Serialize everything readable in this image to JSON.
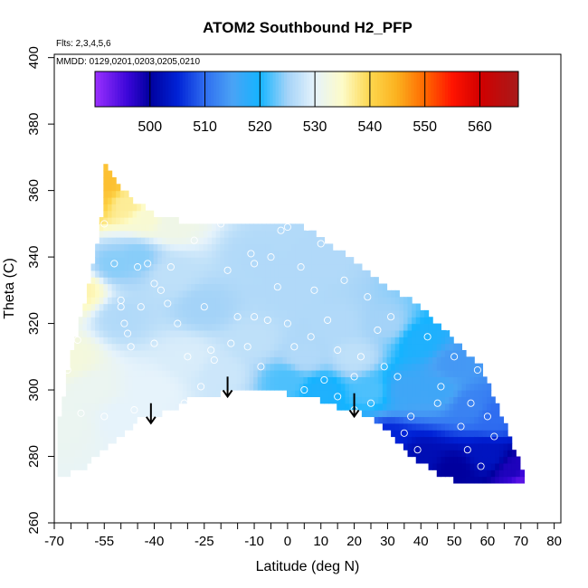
{
  "chart_data": {
    "type": "heatmap",
    "title": "ATOM2 Southbound H2_PFP",
    "flights_label": "Flts: 2,3,4,5,6",
    "dates_label": "MMDD: 0129,0201,0203,0205,0210",
    "xlabel": "Latitude (deg N)",
    "ylabel": "Theta (C)",
    "xlim": [
      -70,
      82
    ],
    "ylim": [
      260,
      401
    ],
    "x_ticks": [
      -70,
      -55,
      -40,
      -25,
      -10,
      0,
      10,
      20,
      30,
      40,
      50,
      60,
      70,
      80
    ],
    "x_tick_labels": [
      "-70",
      "-55",
      "-40",
      "-25",
      "-10",
      "0",
      "10",
      "20",
      "30",
      "40",
      "50",
      "60",
      "70",
      "80"
    ],
    "x_minor_ticks": [
      -65,
      -60,
      -50,
      -45,
      -35,
      -30,
      -20,
      -15,
      -5,
      5,
      15,
      25,
      35,
      45,
      55,
      65,
      75
    ],
    "y_ticks": [
      260,
      280,
      300,
      320,
      340,
      360,
      380,
      400
    ],
    "y_tick_labels": [
      "260",
      "280",
      "300",
      "320",
      "340",
      "360",
      "380",
      "400"
    ],
    "colorbar": {
      "range": [
        490,
        567
      ],
      "ticks": [
        500,
        510,
        520,
        530,
        540,
        550,
        560
      ],
      "tick_labels": [
        "500",
        "510",
        "520",
        "530",
        "540",
        "550",
        "560"
      ],
      "stops": [
        {
          "v": 490,
          "c": "#9b30ff"
        },
        {
          "v": 496,
          "c": "#3a06d8"
        },
        {
          "v": 500,
          "c": "#00009e"
        },
        {
          "v": 505,
          "c": "#0022d6"
        },
        {
          "v": 510,
          "c": "#2f6df0"
        },
        {
          "v": 515,
          "c": "#4aa3f5"
        },
        {
          "v": 520,
          "c": "#14b4ff"
        },
        {
          "v": 525,
          "c": "#a4d3f8"
        },
        {
          "v": 530,
          "c": "#e6f3fb"
        },
        {
          "v": 535,
          "c": "#fdfbc8"
        },
        {
          "v": 540,
          "c": "#fdd74e"
        },
        {
          "v": 545,
          "c": "#fbb01e"
        },
        {
          "v": 550,
          "c": "#ff6800"
        },
        {
          "v": 555,
          "c": "#ff1400"
        },
        {
          "v": 560,
          "c": "#d20000"
        },
        {
          "v": 567,
          "c": "#a71a1a"
        }
      ]
    },
    "field_boundary": {
      "top": [
        [
          -69,
          289
        ],
        [
          -65,
          310
        ],
        [
          -60,
          330
        ],
        [
          -56,
          350
        ],
        [
          -55,
          368
        ],
        [
          -50,
          361
        ],
        [
          -45,
          356
        ],
        [
          -40,
          353
        ],
        [
          -35,
          352
        ],
        [
          -30,
          350
        ],
        [
          -25,
          351
        ],
        [
          -20,
          350
        ],
        [
          -15,
          350
        ],
        [
          -10,
          350
        ],
        [
          -5,
          350
        ],
        [
          0,
          350
        ],
        [
          5,
          349
        ],
        [
          10,
          346
        ],
        [
          15,
          342
        ],
        [
          20,
          339
        ],
        [
          25,
          335
        ],
        [
          30,
          331
        ],
        [
          35,
          328
        ],
        [
          40,
          325
        ],
        [
          45,
          320
        ],
        [
          50,
          315
        ],
        [
          55,
          310
        ],
        [
          58,
          307
        ],
        [
          61,
          300
        ],
        [
          65,
          290
        ],
        [
          68,
          282
        ],
        [
          71,
          275
        ]
      ],
      "bottom": [
        [
          -69,
          274
        ],
        [
          -62,
          276
        ],
        [
          -55,
          282
        ],
        [
          -50,
          286
        ],
        [
          -45,
          291
        ],
        [
          -40,
          292
        ],
        [
          -35,
          294
        ],
        [
          -30,
          297
        ],
        [
          -25,
          298
        ],
        [
          -20,
          299
        ],
        [
          -15,
          300
        ],
        [
          -10,
          301
        ],
        [
          -5,
          300
        ],
        [
          0,
          299
        ],
        [
          5,
          298
        ],
        [
          10,
          297
        ],
        [
          15,
          295
        ],
        [
          20,
          294
        ],
        [
          25,
          292
        ],
        [
          30,
          288
        ],
        [
          35,
          282
        ],
        [
          40,
          278
        ],
        [
          45,
          275
        ],
        [
          50,
          273
        ],
        [
          55,
          272
        ],
        [
          60,
          272
        ],
        [
          65,
          272
        ],
        [
          71,
          272
        ]
      ]
    },
    "value_field_anchors": [
      {
        "lat": -58,
        "theta": 358,
        "v": 542
      },
      {
        "lat": -55,
        "theta": 362,
        "v": 543
      },
      {
        "lat": -48,
        "theta": 356,
        "v": 537
      },
      {
        "lat": -42,
        "theta": 352,
        "v": 534
      },
      {
        "lat": -35,
        "theta": 350,
        "v": 532
      },
      {
        "lat": -62,
        "theta": 330,
        "v": 536
      },
      {
        "lat": -65,
        "theta": 310,
        "v": 533
      },
      {
        "lat": -66,
        "theta": 290,
        "v": 531
      },
      {
        "lat": -58,
        "theta": 300,
        "v": 531
      },
      {
        "lat": -50,
        "theta": 292,
        "v": 530
      },
      {
        "lat": -50,
        "theta": 322,
        "v": 526
      },
      {
        "lat": -52,
        "theta": 338,
        "v": 524
      },
      {
        "lat": -45,
        "theta": 340,
        "v": 524
      },
      {
        "lat": -35,
        "theta": 335,
        "v": 527
      },
      {
        "lat": -25,
        "theta": 325,
        "v": 525
      },
      {
        "lat": -30,
        "theta": 310,
        "v": 529
      },
      {
        "lat": -40,
        "theta": 300,
        "v": 530
      },
      {
        "lat": -20,
        "theta": 305,
        "v": 528
      },
      {
        "lat": -10,
        "theta": 340,
        "v": 526
      },
      {
        "lat": -10,
        "theta": 315,
        "v": 527
      },
      {
        "lat": 0,
        "theta": 330,
        "v": 526
      },
      {
        "lat": 5,
        "theta": 310,
        "v": 526
      },
      {
        "lat": 10,
        "theta": 340,
        "v": 526
      },
      {
        "lat": 15,
        "theta": 320,
        "v": 526
      },
      {
        "lat": 20,
        "theta": 310,
        "v": 527
      },
      {
        "lat": 25,
        "theta": 300,
        "v": 522
      },
      {
        "lat": 30,
        "theta": 320,
        "v": 525
      },
      {
        "lat": 35,
        "theta": 300,
        "v": 516
      },
      {
        "lat": 40,
        "theta": 315,
        "v": 519
      },
      {
        "lat": 45,
        "theta": 300,
        "v": 516
      },
      {
        "lat": 50,
        "theta": 308,
        "v": 514
      },
      {
        "lat": 55,
        "theta": 295,
        "v": 512
      },
      {
        "lat": 30,
        "theta": 285,
        "v": 505
      },
      {
        "lat": 40,
        "theta": 280,
        "v": 502
      },
      {
        "lat": 50,
        "theta": 276,
        "v": 500
      },
      {
        "lat": 60,
        "theta": 280,
        "v": 503
      },
      {
        "lat": 62,
        "theta": 292,
        "v": 510
      },
      {
        "lat": 68,
        "theta": 276,
        "v": 498
      },
      {
        "lat": 71,
        "theta": 273,
        "v": 494
      },
      {
        "lat": 0,
        "theta": 303,
        "v": 522
      },
      {
        "lat": 10,
        "theta": 300,
        "v": 519
      }
    ],
    "sample_points": [
      [
        -63,
        315
      ],
      [
        -60,
        340
      ],
      [
        -58,
        345
      ],
      [
        -55,
        350
      ],
      [
        -52,
        338
      ],
      [
        -50,
        327
      ],
      [
        -50,
        325
      ],
      [
        -49,
        320
      ],
      [
        -48,
        317
      ],
      [
        -47,
        313
      ],
      [
        -45,
        337
      ],
      [
        -44,
        325
      ],
      [
        -42,
        338
      ],
      [
        -40,
        332
      ],
      [
        -38,
        330
      ],
      [
        -36,
        326
      ],
      [
        -35,
        337
      ],
      [
        -33,
        320
      ],
      [
        -30,
        310
      ],
      [
        -28,
        345
      ],
      [
        -25,
        325
      ],
      [
        -23,
        312
      ],
      [
        -20,
        350
      ],
      [
        -18,
        336
      ],
      [
        -15,
        322
      ],
      [
        -12,
        313
      ],
      [
        -11,
        341
      ],
      [
        -10,
        338
      ],
      [
        -10,
        322
      ],
      [
        -10,
        296
      ],
      [
        -8,
        307
      ],
      [
        -6,
        321
      ],
      [
        -5,
        340
      ],
      [
        -3,
        331
      ],
      [
        -2,
        348
      ],
      [
        0,
        349
      ],
      [
        0,
        320
      ],
      [
        2,
        313
      ],
      [
        4,
        337
      ],
      [
        5,
        300
      ],
      [
        6,
        349
      ],
      [
        7,
        316
      ],
      [
        8,
        330
      ],
      [
        10,
        344
      ],
      [
        11,
        303
      ],
      [
        12,
        321
      ],
      [
        15,
        312
      ],
      [
        15,
        298
      ],
      [
        17,
        333
      ],
      [
        20,
        304
      ],
      [
        20,
        294
      ],
      [
        20,
        293
      ],
      [
        22,
        310
      ],
      [
        24,
        328
      ],
      [
        25,
        296
      ],
      [
        27,
        318
      ],
      [
        29,
        307
      ],
      [
        31,
        322
      ],
      [
        33,
        304
      ],
      [
        35,
        287
      ],
      [
        37,
        292
      ],
      [
        39,
        282
      ],
      [
        42,
        316
      ],
      [
        45,
        296
      ],
      [
        46,
        301
      ],
      [
        48,
        319
      ],
      [
        50,
        310
      ],
      [
        52,
        289
      ],
      [
        54,
        282
      ],
      [
        55,
        296
      ],
      [
        57,
        306
      ],
      [
        58,
        277
      ],
      [
        60,
        292
      ],
      [
        62,
        286
      ],
      [
        -66,
        306
      ],
      [
        -62,
        293
      ],
      [
        -55,
        292
      ],
      [
        -46,
        294
      ],
      [
        -40,
        314
      ],
      [
        -31,
        296
      ],
      [
        -26,
        301
      ],
      [
        -22,
        309
      ],
      [
        -17,
        314
      ]
    ],
    "arrows": [
      {
        "lat": -41,
        "theta_top": 296,
        "theta_tip": 290
      },
      {
        "lat": -18,
        "theta_top": 304,
        "theta_tip": 298
      },
      {
        "lat": 20,
        "theta_top": 299,
        "theta_tip": 292
      }
    ]
  }
}
